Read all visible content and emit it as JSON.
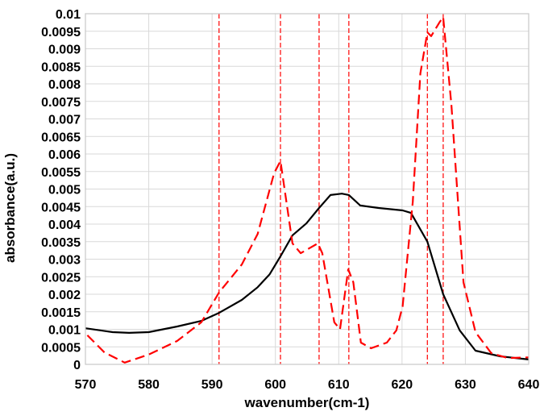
{
  "chart_data": {
    "type": "line",
    "title": "",
    "xlabel": "wavenumber(cm-1)",
    "ylabel": "absorbance(a.u.)",
    "xlim": [
      570,
      640
    ],
    "ylim": [
      0,
      0.01
    ],
    "x_ticks": [
      "570",
      "580",
      "590",
      "600",
      "610",
      "620",
      "630",
      "640"
    ],
    "y_ticks": [
      "0",
      "0.0005",
      "0.001",
      "0.0015",
      "0.002",
      "0.0025",
      "0.003",
      "0.0035",
      "0.004",
      "0.0045",
      "0.005",
      "0.0055",
      "0.006",
      "0.0065",
      "0.007",
      "0.0075",
      "0.008",
      "0.0085",
      "0.009",
      "0.0095",
      "0.01"
    ],
    "grid": true,
    "series": [
      {
        "name": "solid",
        "color": "#000000",
        "style": "solid",
        "x": [
          570,
          574.3,
          576.9,
          580,
          584.5,
          588.3,
          591.1,
          594.7,
          597.2,
          599.1,
          600.8,
          602.7,
          604.9,
          606.9,
          608.7,
          610.5,
          611.6,
          613.4,
          616.3,
          620.1,
          621.4,
          624,
          626.5,
          629.1,
          631.6,
          635.5,
          640
        ],
        "y": [
          0.00103,
          0.00092,
          0.0009,
          0.00092,
          0.00108,
          0.00124,
          0.00147,
          0.00184,
          0.0022,
          0.00257,
          0.00308,
          0.00368,
          0.00402,
          0.00446,
          0.00483,
          0.00487,
          0.00483,
          0.00453,
          0.00446,
          0.00439,
          0.00432,
          0.0035,
          0.002,
          0.00097,
          0.00039,
          0.00023,
          0.00014
        ]
      },
      {
        "name": "dashed",
        "color": "#ff0000",
        "style": "dashed",
        "x": [
          570.3,
          573,
          576.2,
          580,
          584.5,
          588.3,
          591.1,
          594.7,
          597.2,
          599.8,
          600.8,
          602.7,
          604,
          606.7,
          607.4,
          609.3,
          610.2,
          611.5,
          612.3,
          613.5,
          615.1,
          617.6,
          619.1,
          620.1,
          621.7,
          622.9,
          624,
          624.6,
          625.9,
          626.5,
          627.8,
          629.7,
          631.6,
          634.1,
          636.7,
          640
        ],
        "y": [
          0.00083,
          0.00034,
          5e-05,
          0.00028,
          0.00067,
          0.0012,
          0.00205,
          0.00285,
          0.00372,
          0.00545,
          0.0058,
          0.00345,
          0.00317,
          0.00345,
          0.00317,
          0.0012,
          0.001,
          0.00271,
          0.00234,
          0.00062,
          0.00046,
          0.00062,
          0.00097,
          0.00166,
          0.00464,
          0.0083,
          0.00947,
          0.00936,
          0.00975,
          0.0099,
          0.0074,
          0.00234,
          0.00092,
          0.00032,
          0.00018,
          0.0002
        ]
      }
    ],
    "vertical_markers": {
      "color": "#ff0000",
      "style": "dashed",
      "x": [
        591.1,
        600.8,
        606.9,
        611.6,
        624.0,
        626.5
      ]
    }
  }
}
